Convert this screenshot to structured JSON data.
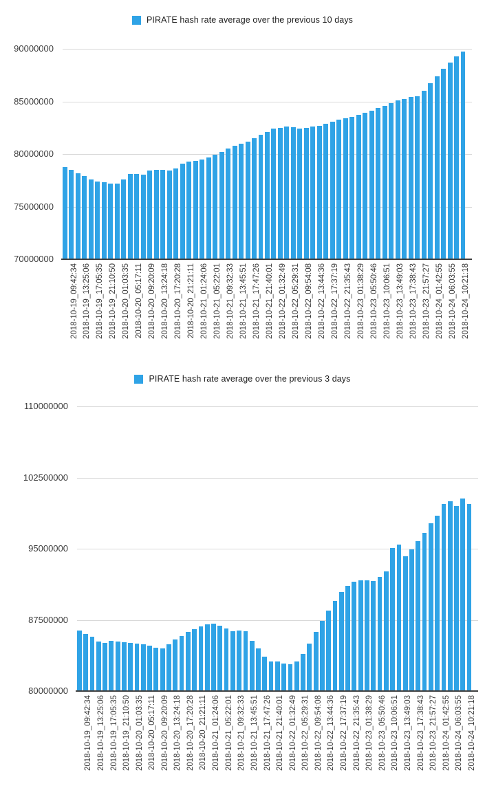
{
  "page": {
    "background": "#ffffff",
    "accent_blue": "#2fa3e6"
  },
  "chart_data": [
    {
      "type": "bar",
      "legend_label": "PIRATE hash rate average over the previous 10 days",
      "legend_position": "top",
      "bar_color": "#2fa3e6",
      "grid": true,
      "ylim": [
        70000000,
        90000000
      ],
      "y_ticks": [
        90000000,
        85000000,
        80000000,
        75000000,
        70000000
      ],
      "y_tick_labels": [
        "90000000",
        "85000000",
        "80000000",
        "75000000",
        "70000000"
      ],
      "x_tick_labels": [
        "2018-10-19_09:42:34",
        "2018-10-19_13:25:06",
        "2018-10-19_17:05:35",
        "2018-10-19_21:10:50",
        "2018-10-20_01:03:35",
        "2018-10-20_05:17:11",
        "2018-10-20_09:20:09",
        "2018-10-20_13:24:18",
        "2018-10-20_17:20:28",
        "2018-10-20_21:21:11",
        "2018-10-21_01:24:06",
        "2018-10-21_05:22:01",
        "2018-10-21_09:32:33",
        "2018-10-21_13:45:51",
        "2018-10-21_17:47:26",
        "2018-10-21_21:40:01",
        "2018-10-22_01:32:49",
        "2018-10-22_05:29:31",
        "2018-10-22_09:54:08",
        "2018-10-22_13:44:36",
        "2018-10-22_17:37:19",
        "2018-10-22_21:35:43",
        "2018-10-23_01:38:29",
        "2018-10-23_05:50:46",
        "2018-10-23_10:06:51",
        "2018-10-23_13:49:03",
        "2018-10-23_17:38:43",
        "2018-10-23_21:57:27",
        "2018-10-24_01:42:55",
        "2018-10-24_06:03:55",
        "2018-10-24_10:21:18"
      ],
      "x_tick_every_n_bars": 2,
      "values": [
        78750000,
        78500000,
        78200000,
        77900000,
        77600000,
        77400000,
        77300000,
        77200000,
        77200000,
        77600000,
        78100000,
        78100000,
        78050000,
        78400000,
        78500000,
        78500000,
        78450000,
        78650000,
        79100000,
        79300000,
        79350000,
        79500000,
        79700000,
        79950000,
        80200000,
        80500000,
        80800000,
        81000000,
        81200000,
        81500000,
        81800000,
        82100000,
        82400000,
        82500000,
        82600000,
        82550000,
        82450000,
        82500000,
        82600000,
        82700000,
        82900000,
        83100000,
        83250000,
        83400000,
        83550000,
        83700000,
        83900000,
        84100000,
        84350000,
        84600000,
        84850000,
        85100000,
        85250000,
        85400000,
        85500000,
        86000000,
        86700000,
        87400000,
        88100000,
        88700000,
        89300000,
        89750000
      ]
    },
    {
      "type": "bar",
      "legend_label": "PIRATE hash rate average over the previous 3 days",
      "legend_position": "top",
      "bar_color": "#2fa3e6",
      "grid": true,
      "ylim": [
        80000000,
        110000000
      ],
      "y_ticks": [
        110000000,
        102500000,
        95000000,
        87500000,
        80000000
      ],
      "y_tick_labels": [
        "110000000",
        "102500000",
        "95000000",
        "87500000",
        "80000000"
      ],
      "x_tick_labels": [
        "2018-10-19_09:42:34",
        "2018-10-19_13:25:06",
        "2018-10-19_17:05:35",
        "2018-10-19_21:10:50",
        "2018-10-20_01:03:35",
        "2018-10-20_05:17:11",
        "2018-10-20_09:20:09",
        "2018-10-20_13:24:18",
        "2018-10-20_17:20:28",
        "2018-10-20_21:21:11",
        "2018-10-21_01:24:06",
        "2018-10-21_05:22:01",
        "2018-10-21_09:32:33",
        "2018-10-21_13:45:51",
        "2018-10-21_17:47:26",
        "2018-10-21_21:40:01",
        "2018-10-22_01:32:49",
        "2018-10-22_05:29:31",
        "2018-10-22_09:54:08",
        "2018-10-22_13:44:36",
        "2018-10-22_17:37:19",
        "2018-10-22_21:35:43",
        "2018-10-23_01:38:29",
        "2018-10-23_05:50:46",
        "2018-10-23_10:06:51",
        "2018-10-23_13:49:03",
        "2018-10-23_17:38:43",
        "2018-10-23_21:57:27",
        "2018-10-24_01:42:55",
        "2018-10-24_06:03:55",
        "2018-10-24_10:21:18"
      ],
      "x_tick_every_n_bars": 2,
      "values": [
        86400000,
        86000000,
        85700000,
        85200000,
        85100000,
        85300000,
        85250000,
        85150000,
        85100000,
        85000000,
        84950000,
        84800000,
        84600000,
        84500000,
        84900000,
        85400000,
        85800000,
        86200000,
        86500000,
        86800000,
        87000000,
        87100000,
        86900000,
        86600000,
        86300000,
        86350000,
        86300000,
        85300000,
        84500000,
        83600000,
        83100000,
        83150000,
        82900000,
        82800000,
        83100000,
        83900000,
        85000000,
        86200000,
        87400000,
        88500000,
        89500000,
        90400000,
        91100000,
        91500000,
        91650000,
        91700000,
        91600000,
        92000000,
        92600000,
        95100000,
        95400000,
        94200000,
        94900000,
        95800000,
        96700000,
        97700000,
        98500000,
        99700000,
        100000000,
        99500000,
        100300000,
        99700000
      ]
    }
  ]
}
